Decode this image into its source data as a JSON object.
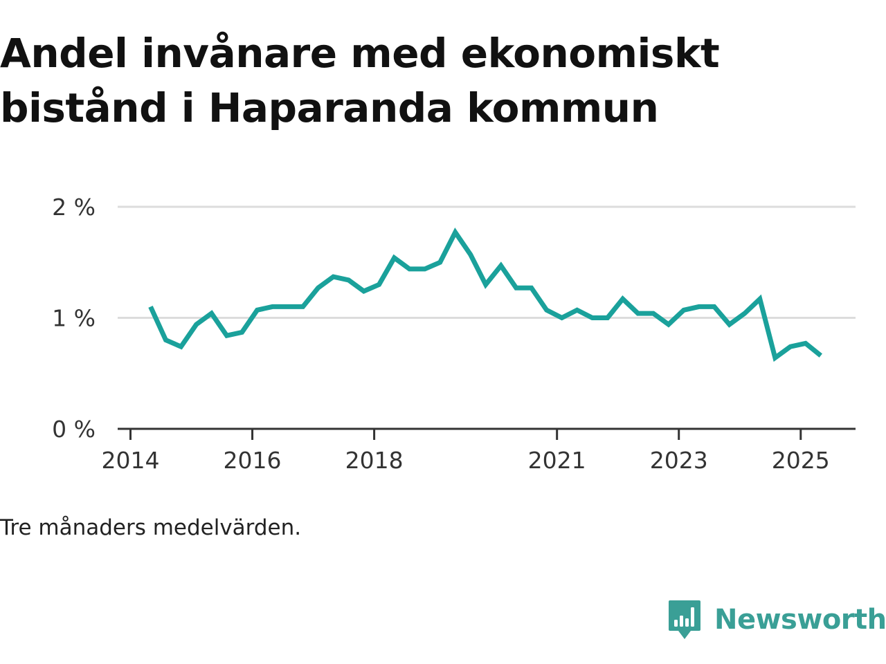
{
  "chart_data": {
    "type": "line",
    "title": "Andel invånare med ekonomiskt bistånd i Haparanda kommun",
    "footnote": "Tre månaders medelvärden.",
    "xlabel": "",
    "ylabel": "",
    "ylim": [
      0,
      2
    ],
    "y_ticks": [
      {
        "value": 0,
        "label": "0 %"
      },
      {
        "value": 1,
        "label": "1 %"
      },
      {
        "value": 2,
        "label": "2 %"
      }
    ],
    "x_ticks": [
      {
        "value": 2014.0,
        "label": "2014"
      },
      {
        "value": 2016.0,
        "label": "2016"
      },
      {
        "value": 2018.0,
        "label": "2018"
      },
      {
        "value": 2021.0,
        "label": "2021"
      },
      {
        "value": 2023.0,
        "label": "2023"
      },
      {
        "value": 2025.0,
        "label": "2025"
      }
    ],
    "xlim": [
      2013.79,
      2025.9
    ],
    "grid": true,
    "line_color": "#1aa19b",
    "series": [
      {
        "x": [
          2014.33,
          2014.58,
          2014.83,
          2015.08,
          2015.33,
          2015.58,
          2015.83,
          2016.08,
          2016.33,
          2016.58,
          2016.83,
          2017.08,
          2017.33,
          2017.58,
          2017.83,
          2018.08,
          2018.33,
          2018.58,
          2018.83,
          2019.08,
          2019.33,
          2019.58,
          2019.83,
          2020.08,
          2020.33,
          2020.58,
          2020.83,
          2021.08,
          2021.33,
          2021.58,
          2021.83,
          2022.08,
          2022.33,
          2022.58,
          2022.83,
          2023.08,
          2023.33,
          2023.58,
          2023.83,
          2024.08,
          2024.33,
          2024.58,
          2024.83,
          2025.08,
          2025.33
        ],
        "values": [
          1.1,
          0.8,
          0.74,
          0.94,
          1.04,
          0.84,
          0.87,
          1.07,
          1.1,
          1.1,
          1.1,
          1.27,
          1.37,
          1.34,
          1.24,
          1.3,
          1.54,
          1.44,
          1.44,
          1.5,
          1.77,
          1.57,
          1.3,
          1.47,
          1.27,
          1.27,
          1.07,
          1.0,
          1.07,
          1.0,
          1.0,
          1.17,
          1.04,
          1.04,
          0.94,
          1.07,
          1.1,
          1.1,
          0.94,
          1.04,
          1.17,
          0.64,
          0.74,
          0.77,
          0.66
        ]
      }
    ]
  },
  "brand": {
    "name": "Newsworthy",
    "color": "#3a9f96",
    "icon": "newsworthy-logo-icon"
  }
}
